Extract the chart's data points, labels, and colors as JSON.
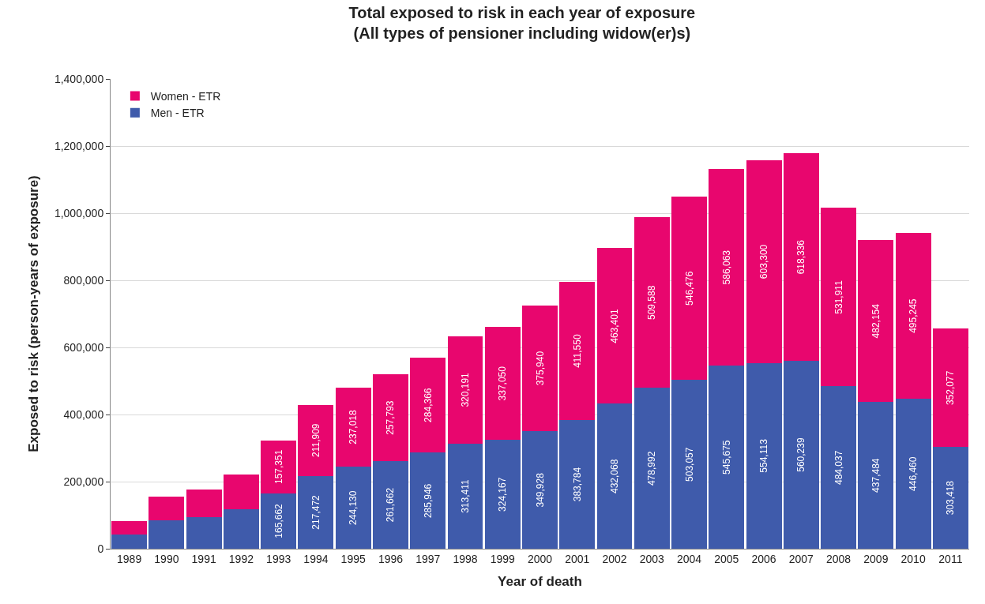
{
  "chart_data": {
    "type": "bar",
    "stacked": true,
    "title": "Total exposed to risk in each year of exposure\n(All types of pensioner including widow(er)s)",
    "xlabel": "Year of death",
    "ylabel": "Exposed to risk (person-years of exposure)",
    "categories": [
      "1989",
      "1990",
      "1991",
      "1992",
      "1993",
      "1994",
      "1995",
      "1996",
      "1997",
      "1998",
      "1999",
      "2000",
      "2001",
      "2002",
      "2003",
      "2004",
      "2005",
      "2006",
      "2007",
      "2008",
      "2009",
      "2010",
      "2011"
    ],
    "series": [
      {
        "name": "Men - ETR",
        "color": "#3f5bab",
        "values": [
          42000,
          84000,
          93000,
          117000,
          165662,
          217472,
          244130,
          261662,
          285946,
          313411,
          324167,
          349928,
          383784,
          432068,
          478992,
          503057,
          545675,
          554113,
          560239,
          484037,
          437484,
          446460,
          303418
        ],
        "value_labels": [
          null,
          null,
          null,
          null,
          "165,662",
          "217,472",
          "244,130",
          "261,662",
          "285,946",
          "313,411",
          "324,167",
          "349,928",
          "383,784",
          "432,068",
          "478,992",
          "503,057",
          "545,675",
          "554,113",
          "560,239",
          "484,037",
          "437,484",
          "446,460",
          "303,418"
        ]
      },
      {
        "name": "Women - ETR",
        "color": "#e8066e",
        "values": [
          40000,
          71000,
          84000,
          104000,
          157351,
          211909,
          237018,
          257793,
          284366,
          320191,
          337050,
          375940,
          411550,
          463401,
          509588,
          546476,
          586063,
          603300,
          618336,
          531911,
          482154,
          495245,
          352077
        ],
        "value_labels": [
          null,
          null,
          null,
          null,
          "157,351",
          "211,909",
          "237,018",
          "257,793",
          "284,366",
          "320,191",
          "337,050",
          "375,940",
          "411,550",
          "463,401",
          "509,588",
          "546,476",
          "586,063",
          "603,300",
          "618,336",
          "531,911",
          "482,154",
          "495,245",
          "352,077"
        ]
      }
    ],
    "ylim": [
      0,
      1400000
    ],
    "yticks": [
      0,
      {
        "value": 200000,
        "label": "200,000"
      },
      {
        "value": 400000,
        "label": "400,000"
      },
      {
        "value": 600000,
        "label": "600,000"
      },
      {
        "value": 800000,
        "label": "800,000"
      },
      {
        "value": 1000000,
        "label": "1,000,000"
      },
      {
        "value": 1200000,
        "label": "1,200,000"
      },
      {
        "value": 1400000,
        "label": "1,400,000"
      }
    ],
    "grid": "y",
    "legend": "top left"
  }
}
